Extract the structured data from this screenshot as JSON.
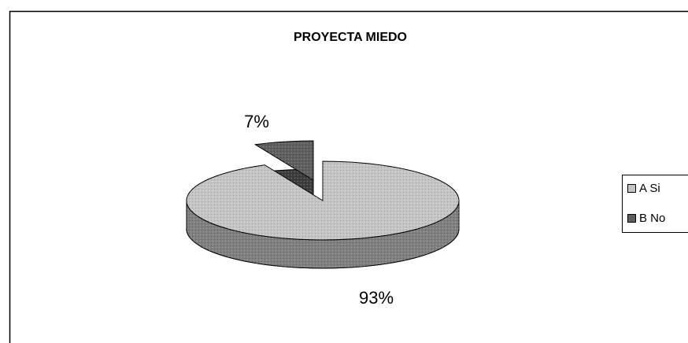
{
  "chart_data": {
    "type": "pie3d",
    "title": "PROYECTA MIEDO",
    "categories": [
      "A Si",
      "B No"
    ],
    "values": [
      93,
      7
    ],
    "value_labels": [
      "93%",
      "7%"
    ],
    "colors": [
      "#c4c4c4",
      "#5e5e5e"
    ],
    "legend": "right"
  }
}
